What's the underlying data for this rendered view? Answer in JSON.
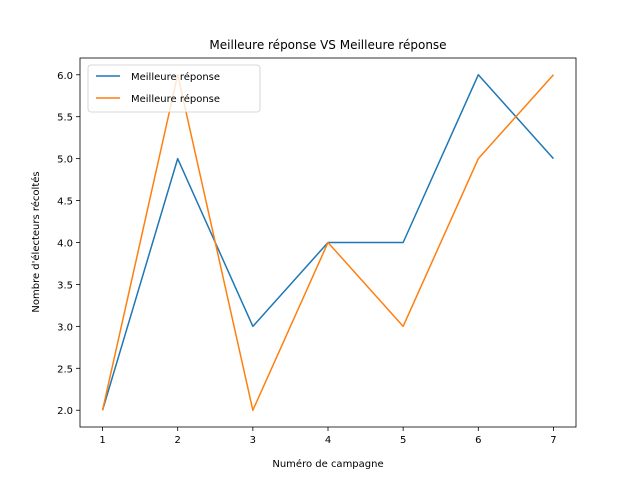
{
  "chart_data": {
    "type": "line",
    "title": "Meilleure réponse VS Meilleure réponse",
    "xlabel": "Numéro de campagne",
    "ylabel": "Nombre d'électeurs récoltés",
    "x": [
      1,
      2,
      3,
      4,
      5,
      6,
      7
    ],
    "xlim": [
      0.7,
      7.3
    ],
    "ylim": [
      1.8,
      6.2
    ],
    "xticks": [
      1,
      2,
      3,
      4,
      5,
      6,
      7
    ],
    "xtick_labels": [
      "1",
      "2",
      "3",
      "4",
      "5",
      "6",
      "7"
    ],
    "yticks": [
      2.0,
      2.5,
      3.0,
      3.5,
      4.0,
      4.5,
      5.0,
      5.5,
      6.0
    ],
    "ytick_labels": [
      "2.0",
      "2.5",
      "3.0",
      "3.5",
      "4.0",
      "4.5",
      "5.0",
      "5.5",
      "6.0"
    ],
    "grid": false,
    "legend_position": "top-left",
    "series": [
      {
        "name": "Meilleure réponse",
        "color": "#1f77b4",
        "values": [
          2,
          5,
          3,
          4,
          4,
          6,
          5
        ]
      },
      {
        "name": "Meilleure réponse",
        "color": "#ff7f0e",
        "values": [
          2,
          6,
          2,
          4,
          3,
          5,
          6
        ]
      }
    ]
  }
}
